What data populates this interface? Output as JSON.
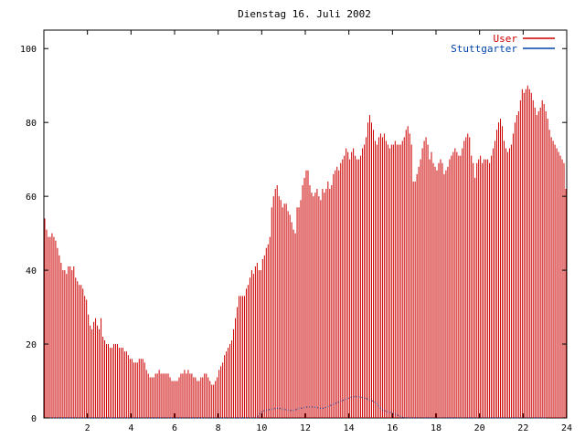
{
  "chart_data": {
    "type": "bar",
    "title": "Dienstag 16. Juli 2002",
    "xlabel": "",
    "ylabel": "",
    "xlim": [
      0,
      24
    ],
    "ylim": [
      0,
      105
    ],
    "x_ticks": [
      "2",
      "4",
      "6",
      "8",
      "10",
      "12",
      "14",
      "16",
      "18",
      "20",
      "22",
      "24"
    ],
    "y_ticks": [
      "0",
      "20",
      "40",
      "60",
      "80",
      "100"
    ],
    "legend_position": "top-right",
    "grid": false,
    "sample_interval_minutes": 5,
    "series": [
      {
        "name": "User",
        "color": "#cc0000",
        "values": [
          54,
          51,
          49,
          49,
          50,
          49,
          48,
          46,
          44,
          42,
          40,
          40,
          39,
          41,
          41,
          40,
          41,
          38,
          37,
          36,
          36,
          35,
          33,
          32,
          28,
          25,
          24,
          26,
          27,
          25,
          24,
          27,
          22,
          21,
          20,
          20,
          19,
          19,
          20,
          20,
          20,
          19,
          19,
          19,
          18,
          18,
          17,
          16,
          16,
          15,
          15,
          15,
          16,
          16,
          16,
          15,
          13,
          12,
          11,
          11,
          11,
          12,
          12,
          13,
          12,
          12,
          12,
          12,
          12,
          11,
          10,
          10,
          10,
          10,
          11,
          12,
          12,
          13,
          12,
          13,
          12,
          12,
          11,
          11,
          10,
          10,
          11,
          11,
          12,
          12,
          11,
          10,
          9,
          9,
          10,
          11,
          13,
          14,
          15,
          17,
          18,
          19,
          20,
          21,
          24,
          27,
          30,
          33,
          33,
          33,
          33,
          35,
          36,
          38,
          40,
          39,
          41,
          42,
          40,
          40,
          43,
          44,
          46,
          47,
          49,
          57,
          60,
          62,
          63,
          60,
          59,
          57,
          58,
          58,
          56,
          55,
          53,
          51,
          50,
          57,
          57,
          59,
          63,
          65,
          67,
          67,
          63,
          61,
          60,
          61,
          62,
          60,
          59,
          62,
          61,
          62,
          64,
          62,
          63,
          66,
          67,
          68,
          67,
          69,
          70,
          71,
          73,
          72,
          70,
          72,
          73,
          71,
          70,
          70,
          71,
          73,
          74,
          76,
          80,
          82,
          80,
          78,
          75,
          74,
          76,
          77,
          76,
          77,
          75,
          74,
          73,
          74,
          74,
          75,
          74,
          74,
          74,
          75,
          76,
          78,
          79,
          77,
          74,
          64,
          64,
          66,
          68,
          70,
          73,
          75,
          76,
          74,
          70,
          72,
          69,
          68,
          67,
          69,
          70,
          69,
          66,
          67,
          68,
          70,
          71,
          72,
          73,
          72,
          71,
          71,
          73,
          75,
          76,
          77,
          76,
          71,
          69,
          65,
          69,
          70,
          71,
          69,
          70,
          70,
          70,
          69,
          71,
          73,
          75,
          78,
          80,
          81,
          79,
          75,
          73,
          72,
          73,
          74,
          77,
          80,
          82,
          83,
          86,
          89,
          88,
          89,
          90,
          89,
          88,
          86,
          84,
          82,
          83,
          84,
          86,
          85,
          83,
          81,
          78,
          76,
          75,
          74,
          73,
          72,
          71,
          70,
          69,
          62
        ]
      },
      {
        "name": "Stuttgarter",
        "color": "#0044aa",
        "values": [
          0,
          0,
          0,
          0,
          0,
          0,
          0,
          0,
          0,
          0,
          0,
          0,
          0,
          0,
          0,
          0,
          0,
          0,
          0,
          0,
          0,
          0,
          0,
          0,
          0,
          0,
          0,
          0,
          0,
          0,
          0,
          0,
          0,
          0,
          0,
          0,
          0,
          0,
          0,
          0,
          0,
          0,
          0,
          0,
          0,
          0,
          0,
          0,
          0,
          0,
          0,
          0,
          0,
          0,
          0,
          0,
          0,
          0,
          0,
          0,
          0,
          0,
          0,
          0,
          0,
          0,
          0,
          0,
          0,
          0,
          0,
          0,
          0,
          0,
          0,
          0,
          0,
          0,
          0,
          0,
          0,
          0,
          0,
          0,
          0,
          0,
          0,
          0,
          0,
          0,
          0,
          0,
          0,
          0,
          0,
          0,
          0,
          0,
          0,
          0,
          0,
          0,
          0,
          0,
          0,
          0,
          0,
          0,
          0,
          0,
          0,
          0,
          0,
          0,
          0,
          0,
          0,
          0,
          1,
          1.5,
          1.8,
          2,
          2.1,
          2.2,
          2.3,
          2.4,
          2.5,
          2.5,
          2.6,
          2.6,
          2.5,
          2.4,
          2.3,
          2.2,
          2.1,
          2,
          2,
          2.1,
          2.2,
          2.3,
          2.5,
          2.6,
          2.7,
          2.8,
          2.9,
          3,
          3,
          3,
          3,
          2.9,
          2.8,
          2.7,
          2.6,
          2.6,
          2.7,
          2.9,
          3.1,
          3.3,
          3.5,
          3.7,
          3.9,
          4.1,
          4.3,
          4.5,
          4.7,
          4.9,
          5.1,
          5.3,
          5.5,
          5.6,
          5.7,
          5.8,
          5.8,
          5.7,
          5.6,
          5.5,
          5.4,
          5.3,
          5.1,
          4.9,
          4.7,
          4.5,
          4.2,
          3.8,
          3.2,
          2.6,
          2.2,
          2,
          1.8,
          1.6,
          1.5,
          1.4,
          1.2,
          1,
          0.8,
          0.6,
          0.4,
          0.2,
          0,
          0,
          0,
          0,
          0,
          0,
          0,
          0,
          0,
          0,
          0,
          0,
          0,
          0,
          0,
          0,
          0,
          0,
          0,
          0,
          0,
          0,
          0,
          0,
          0,
          0,
          0,
          0,
          0,
          0,
          0,
          0,
          0,
          0,
          0,
          0,
          0,
          0,
          0,
          0,
          0,
          0,
          0,
          0,
          0,
          0,
          0,
          0,
          0,
          0,
          0,
          0,
          0,
          0,
          0,
          0,
          0,
          0,
          0,
          0,
          0,
          0,
          0,
          0,
          0,
          0,
          0,
          0,
          0,
          0,
          0,
          0,
          0,
          0,
          0,
          0,
          0,
          0,
          0
        ]
      }
    ]
  }
}
